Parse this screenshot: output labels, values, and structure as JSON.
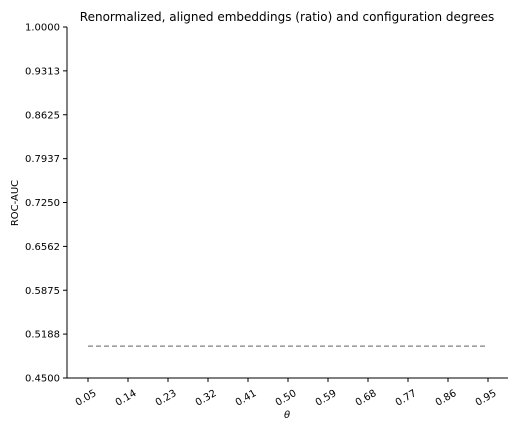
{
  "chart_data": {
    "type": "line",
    "title": "Renormalized, aligned embeddings (ratio) and configuration degrees",
    "xlabel": "θ",
    "ylabel": "ROC-AUC",
    "x": [
      "0.05",
      "0.14",
      "0.23",
      "0.32",
      "0.41",
      "0.50",
      "0.59",
      "0.68",
      "0.77",
      "0.86",
      "0.95"
    ],
    "ylim": [
      0.45,
      1.0
    ],
    "yticks": [
      "0.4500",
      "0.5188",
      "0.5875",
      "0.6562",
      "0.7250",
      "0.7937",
      "0.8625",
      "0.9313",
      "1.0000"
    ],
    "series": [
      {
        "style": "dashed",
        "color": "#808080",
        "values": [
          0.5,
          0.5,
          0.5,
          0.5,
          0.5,
          0.5,
          0.5,
          0.5,
          0.5,
          0.5,
          0.5
        ]
      }
    ],
    "grid": false,
    "legend": "none"
  }
}
